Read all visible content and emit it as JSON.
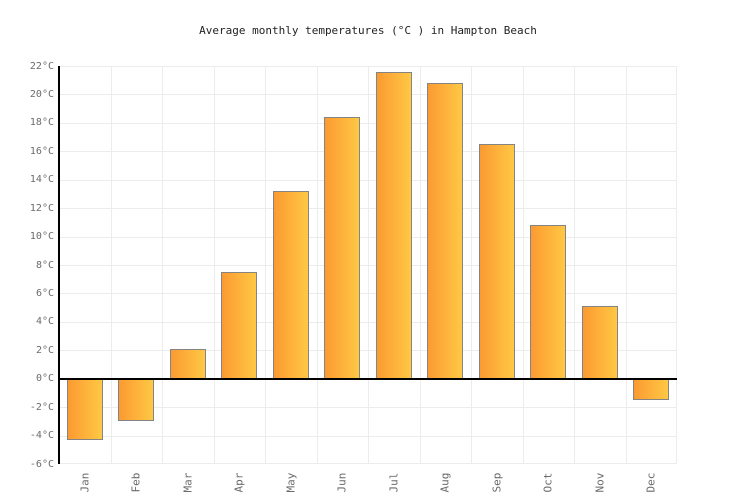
{
  "title": "Average monthly temperatures (°C ) in Hampton Beach",
  "chart_data": {
    "type": "bar",
    "title": "Average monthly temperatures (°C ) in Hampton Beach",
    "categories": [
      "Jan",
      "Feb",
      "Mar",
      "Apr",
      "May",
      "Jun",
      "Jul",
      "Aug",
      "Sep",
      "Oct",
      "Nov",
      "Dec"
    ],
    "values": [
      -4.3,
      -3.0,
      2.1,
      7.5,
      13.2,
      18.4,
      21.6,
      20.8,
      16.5,
      10.8,
      5.1,
      -1.5
    ],
    "xlabel": "",
    "ylabel": "°C",
    "ylim": [
      -6,
      22
    ],
    "ytick_step": 2,
    "ytick_labels": [
      "22°C",
      "20°C",
      "18°C",
      "16°C",
      "14°C",
      "12°C",
      "10°C",
      "8°C",
      "6°C",
      "4°C",
      "2°C",
      "0°C",
      "-2°C",
      "-4°C",
      "-6°C"
    ],
    "grid": true,
    "legend": "none",
    "colors": {
      "bar_gradient_left": "#fb9a32",
      "bar_gradient_right": "#ffc844",
      "bar_border": "#848484",
      "gridline": "#ececec",
      "axis_line": "#000000",
      "zero_line": "#000000",
      "tick_text": "#6b6b6b",
      "title_text": "#222222",
      "background": "#ffffff"
    }
  }
}
